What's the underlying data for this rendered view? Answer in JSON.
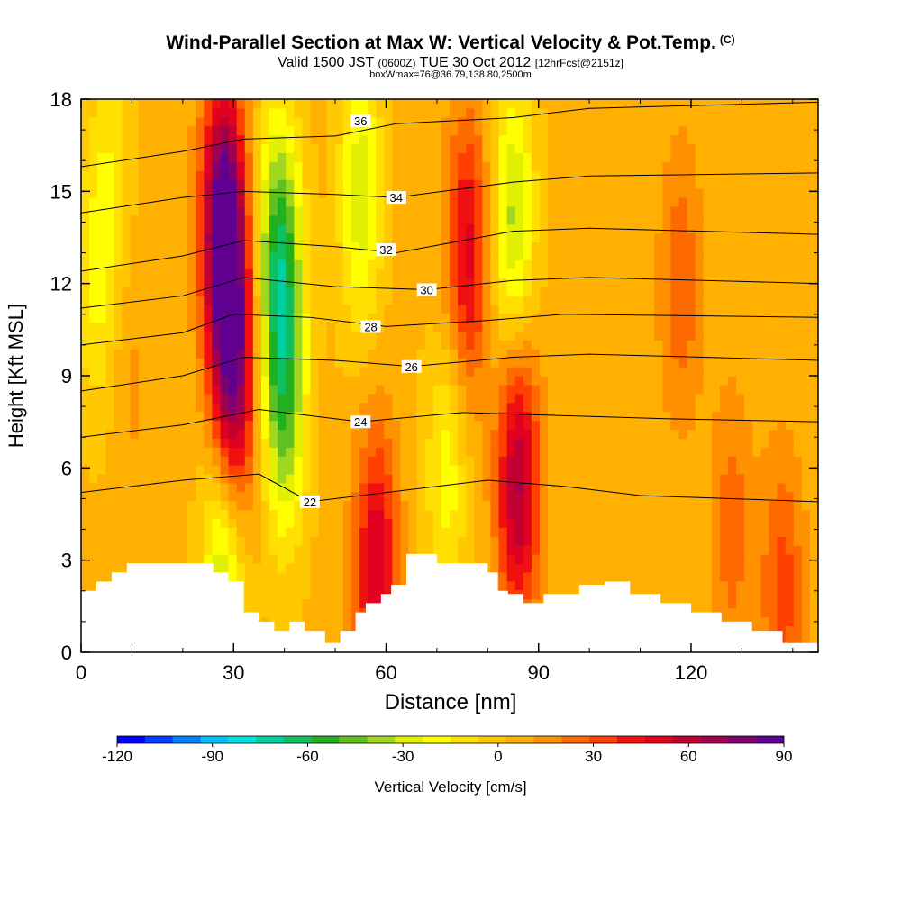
{
  "header": {
    "title": "Wind-Parallel Section at Max W: Vertical Velocity & Pot.Temp.",
    "title_suffix": "(C)",
    "sub_pre": "Valid 1500 JST",
    "sub_small1": "(0600Z)",
    "sub_mid": "TUE 30 Oct 2012",
    "sub_small2": "[12hrFcst@2151z]",
    "info": "boxWmax=76@36.79,138.80,2500m"
  },
  "chart_data": {
    "type": "heatmap",
    "xlabel": "Distance [nm]",
    "ylabel": "Height [Kft MSL]",
    "xlim": [
      0,
      145
    ],
    "ylim": [
      0,
      18
    ],
    "x_ticks": [
      0,
      30,
      60,
      90,
      120
    ],
    "y_ticks": [
      0,
      3,
      6,
      9,
      12,
      15,
      18
    ],
    "colorbar": {
      "title": "Vertical Velocity [cm/s]",
      "ticks": [
        -120,
        -90,
        -60,
        -30,
        0,
        30,
        60,
        90
      ],
      "range": [
        -120,
        90
      ],
      "colors": [
        "#0000ff",
        "#0040ff",
        "#0080ff",
        "#00c0ff",
        "#00e0e0",
        "#00d0a0",
        "#10c060",
        "#20b020",
        "#60c020",
        "#a0d820",
        "#e0f000",
        "#ffff00",
        "#ffe000",
        "#ffc800",
        "#ffb000",
        "#ff9000",
        "#ff6a00",
        "#ff4000",
        "#f01010",
        "#e00020",
        "#c00030",
        "#a00050",
        "#800070",
        "#600090"
      ]
    },
    "w_cells": [
      {
        "x": 3,
        "y": 12,
        "w": -20
      },
      {
        "x": 6,
        "y": 16,
        "w": -15
      },
      {
        "x": 10,
        "y": 9,
        "w": 8
      },
      {
        "x": 28,
        "y": 14,
        "w": 90
      },
      {
        "x": 30,
        "y": 9,
        "w": 70
      },
      {
        "x": 39,
        "y": 13,
        "w": -60
      },
      {
        "x": 40,
        "y": 8,
        "w": -45
      },
      {
        "x": 28,
        "y": 2.8,
        "w": -40
      },
      {
        "x": 55,
        "y": 15,
        "w": -35
      },
      {
        "x": 58,
        "y": 2.8,
        "w": 50
      },
      {
        "x": 76,
        "y": 13,
        "w": 45
      },
      {
        "x": 72,
        "y": 6,
        "w": -25
      },
      {
        "x": 85,
        "y": 14,
        "w": -40
      },
      {
        "x": 86,
        "y": 5.5,
        "w": 60
      },
      {
        "x": 118,
        "y": 12,
        "w": 22
      },
      {
        "x": 128,
        "y": 4,
        "w": 20
      },
      {
        "x": 138,
        "y": 2,
        "w": 28
      }
    ],
    "theta_contours": [
      {
        "label": "22",
        "values": [
          [
            0,
            5.2
          ],
          [
            20,
            5.6
          ],
          [
            35,
            5.8
          ],
          [
            45,
            4.9
          ],
          [
            60,
            5.2
          ],
          [
            80,
            5.6
          ],
          [
            95,
            5.4
          ],
          [
            110,
            5.1
          ],
          [
            145,
            4.9
          ]
        ],
        "label_at": [
          45,
          4.9
        ]
      },
      {
        "label": "24",
        "values": [
          [
            0,
            7.0
          ],
          [
            20,
            7.4
          ],
          [
            35,
            7.9
          ],
          [
            55,
            7.5
          ],
          [
            75,
            7.8
          ],
          [
            95,
            7.7
          ],
          [
            115,
            7.6
          ],
          [
            145,
            7.5
          ]
        ],
        "label_at": [
          55,
          7.5
        ]
      },
      {
        "label": "26",
        "values": [
          [
            0,
            8.5
          ],
          [
            20,
            9.0
          ],
          [
            32,
            9.6
          ],
          [
            50,
            9.5
          ],
          [
            65,
            9.3
          ],
          [
            85,
            9.6
          ],
          [
            100,
            9.7
          ],
          [
            145,
            9.5
          ]
        ],
        "label_at": [
          65,
          9.3
        ]
      },
      {
        "label": "28",
        "values": [
          [
            0,
            10.0
          ],
          [
            20,
            10.4
          ],
          [
            30,
            11.0
          ],
          [
            45,
            10.9
          ],
          [
            60,
            10.6
          ],
          [
            80,
            10.8
          ],
          [
            95,
            11.0
          ],
          [
            145,
            10.9
          ]
        ],
        "label_at": [
          57,
          10.6
        ]
      },
      {
        "label": "30",
        "values": [
          [
            0,
            11.2
          ],
          [
            20,
            11.6
          ],
          [
            32,
            12.2
          ],
          [
            50,
            11.9
          ],
          [
            68,
            11.8
          ],
          [
            85,
            12.1
          ],
          [
            100,
            12.2
          ],
          [
            145,
            12.0
          ]
        ],
        "label_at": [
          68,
          11.8
        ]
      },
      {
        "label": "32",
        "values": [
          [
            0,
            12.4
          ],
          [
            20,
            12.9
          ],
          [
            32,
            13.4
          ],
          [
            50,
            13.2
          ],
          [
            62,
            13.0
          ],
          [
            85,
            13.7
          ],
          [
            100,
            13.8
          ],
          [
            145,
            13.6
          ]
        ],
        "label_at": [
          60,
          13.1
        ]
      },
      {
        "label": "34",
        "values": [
          [
            0,
            14.3
          ],
          [
            20,
            14.8
          ],
          [
            32,
            15.0
          ],
          [
            50,
            14.9
          ],
          [
            62,
            14.8
          ],
          [
            85,
            15.3
          ],
          [
            100,
            15.5
          ],
          [
            145,
            15.6
          ]
        ],
        "label_at": [
          62,
          14.8
        ]
      },
      {
        "label": "36",
        "values": [
          [
            0,
            15.8
          ],
          [
            20,
            16.3
          ],
          [
            32,
            16.7
          ],
          [
            50,
            16.8
          ],
          [
            62,
            17.2
          ],
          [
            85,
            17.4
          ],
          [
            100,
            17.7
          ],
          [
            145,
            17.9
          ]
        ],
        "label_at": [
          55,
          17.3
        ]
      }
    ],
    "terrain": [
      [
        0,
        2
      ],
      [
        3,
        2
      ],
      [
        3,
        2.3
      ],
      [
        6,
        2.3
      ],
      [
        6,
        2.6
      ],
      [
        9,
        2.6
      ],
      [
        9,
        2.9
      ],
      [
        26,
        2.9
      ],
      [
        26,
        2.6
      ],
      [
        29,
        2.6
      ],
      [
        29,
        2.3
      ],
      [
        32,
        2.3
      ],
      [
        32,
        2.0
      ],
      [
        32,
        1.3
      ],
      [
        35,
        1.3
      ],
      [
        35,
        1.0
      ],
      [
        38,
        1.0
      ],
      [
        38,
        0.7
      ],
      [
        41,
        0.7
      ],
      [
        41,
        1.0
      ],
      [
        44,
        1.0
      ],
      [
        44,
        0.7
      ],
      [
        48,
        0.7
      ],
      [
        48,
        0.3
      ],
      [
        51,
        0.3
      ],
      [
        51,
        0.7
      ],
      [
        54,
        0.7
      ],
      [
        54,
        1.3
      ],
      [
        56,
        1.3
      ],
      [
        56,
        1.6
      ],
      [
        59,
        1.6
      ],
      [
        59,
        1.9
      ],
      [
        61,
        1.9
      ],
      [
        61,
        2.2
      ],
      [
        64,
        2.2
      ],
      [
        64,
        3.2
      ],
      [
        70,
        3.2
      ],
      [
        70,
        2.9
      ],
      [
        80,
        2.9
      ],
      [
        80,
        2.6
      ],
      [
        82,
        2.6
      ],
      [
        82,
        2.0
      ],
      [
        84,
        2.0
      ],
      [
        84,
        1.9
      ],
      [
        87,
        1.9
      ],
      [
        87,
        1.6
      ],
      [
        91,
        1.6
      ],
      [
        91,
        1.9
      ],
      [
        98,
        1.9
      ],
      [
        98,
        2.2
      ],
      [
        103,
        2.2
      ],
      [
        103,
        2.3
      ],
      [
        108,
        2.3
      ],
      [
        108,
        1.9
      ],
      [
        114,
        1.9
      ],
      [
        114,
        1.6
      ],
      [
        120,
        1.6
      ],
      [
        120,
        1.3
      ],
      [
        126,
        1.3
      ],
      [
        126,
        1.0
      ],
      [
        132,
        1.0
      ],
      [
        132,
        0.7
      ],
      [
        138,
        0.7
      ],
      [
        138,
        0.3
      ],
      [
        145,
        0.3
      ]
    ]
  }
}
